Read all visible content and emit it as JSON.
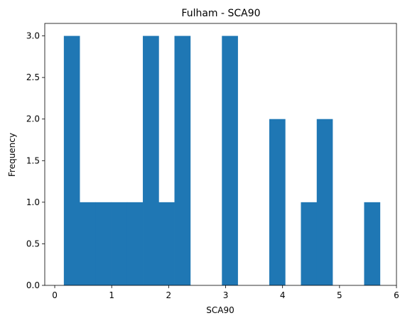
{
  "chart_data": {
    "type": "bar",
    "title": "Fulham - SCA90",
    "xlabel": "SCA90",
    "ylabel": "Frequency",
    "xlim": [
      -0.175,
      6.0
    ],
    "ylim": [
      0,
      3.15
    ],
    "xticks": [
      0,
      1,
      2,
      3,
      4,
      5,
      6
    ],
    "yticks": [
      0.0,
      0.5,
      1.0,
      1.5,
      2.0,
      2.5,
      3.0
    ],
    "xtick_labels": [
      "0",
      "1",
      "2",
      "3",
      "4",
      "5",
      "6"
    ],
    "ytick_labels": [
      "0.0",
      "0.5",
      "1.0",
      "1.5",
      "2.0",
      "2.5",
      "3.0"
    ],
    "grid": false,
    "bar_color": "#1f77b4",
    "bins": [
      {
        "x0": 0.16,
        "x1": 0.437,
        "value": 3
      },
      {
        "x0": 0.437,
        "x1": 0.715,
        "value": 1
      },
      {
        "x0": 0.715,
        "x1": 0.992,
        "value": 1
      },
      {
        "x0": 0.992,
        "x1": 1.27,
        "value": 1
      },
      {
        "x0": 1.27,
        "x1": 1.547,
        "value": 1
      },
      {
        "x0": 1.547,
        "x1": 1.825,
        "value": 3
      },
      {
        "x0": 1.825,
        "x1": 2.102,
        "value": 1
      },
      {
        "x0": 2.102,
        "x1": 2.38,
        "value": 3
      },
      {
        "x0": 2.38,
        "x1": 2.657,
        "value": 0
      },
      {
        "x0": 2.657,
        "x1": 2.935,
        "value": 0
      },
      {
        "x0": 2.935,
        "x1": 3.212,
        "value": 3
      },
      {
        "x0": 3.212,
        "x1": 3.49,
        "value": 0
      },
      {
        "x0": 3.49,
        "x1": 3.767,
        "value": 0
      },
      {
        "x0": 3.767,
        "x1": 4.045,
        "value": 2
      },
      {
        "x0": 4.045,
        "x1": 4.322,
        "value": 0
      },
      {
        "x0": 4.322,
        "x1": 4.6,
        "value": 1
      },
      {
        "x0": 4.6,
        "x1": 4.877,
        "value": 2
      },
      {
        "x0": 4.877,
        "x1": 5.155,
        "value": 0
      },
      {
        "x0": 5.155,
        "x1": 5.432,
        "value": 0
      },
      {
        "x0": 5.432,
        "x1": 5.71,
        "value": 1
      }
    ]
  }
}
